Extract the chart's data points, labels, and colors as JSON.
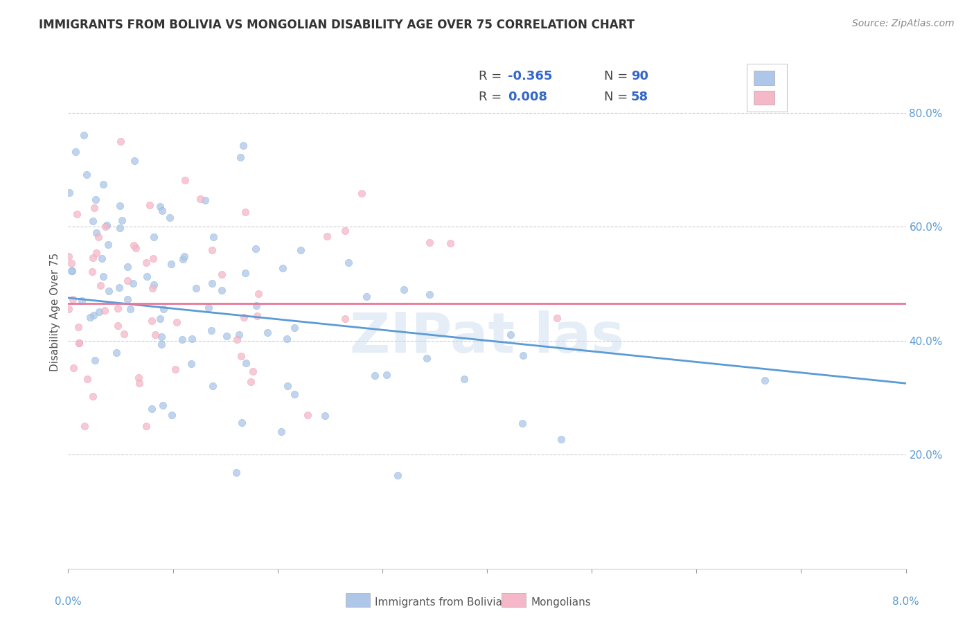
{
  "title": "IMMIGRANTS FROM BOLIVIA VS MONGOLIAN DISABILITY AGE OVER 75 CORRELATION CHART",
  "source": "Source: ZipAtlas.com",
  "ylabel": "Disability Age Over 75",
  "bolivia_color": "#aec6e8",
  "bolivia_edge_color": "#7aafd4",
  "bolivia_line_color": "#5b9bd5",
  "mongolian_color": "#f4b8c8",
  "mongolian_edge_color": "#e896b0",
  "mongolian_line_color": "#e8789a",
  "scatter_alpha": 0.75,
  "scatter_size": 55,
  "background": "#ffffff",
  "grid_color": "#cccccc",
  "xlim": [
    0.0,
    0.08
  ],
  "ylim": [
    0.0,
    0.9
  ],
  "y_ticks_right": [
    0.2,
    0.4,
    0.6,
    0.8
  ],
  "R_bolivia": -0.365,
  "N_bolivia": 90,
  "R_mongolian": 0.008,
  "N_mongolian": 58,
  "legend_color": "#3366cc",
  "title_color": "#333333",
  "axis_label_color": "#555555",
  "tick_color": "#5b9bd5"
}
